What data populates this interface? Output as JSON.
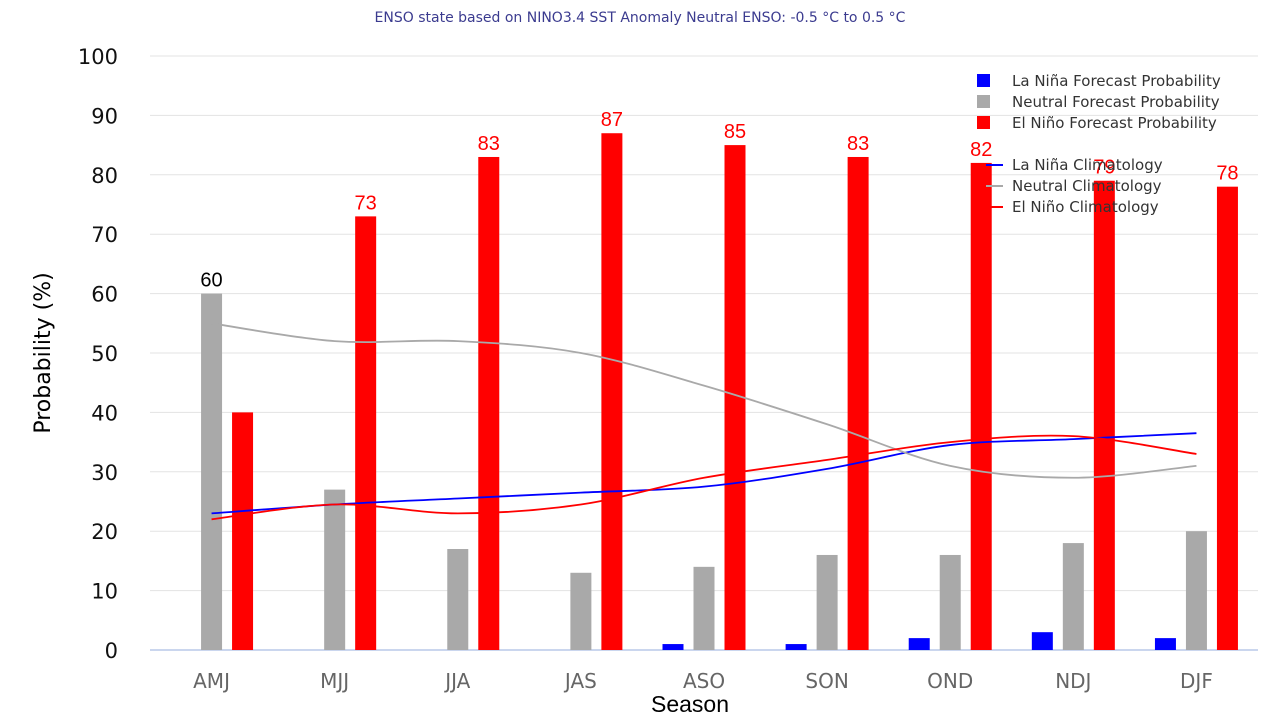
{
  "chart_data": {
    "type": "bar",
    "title": "ENSO state based on NINO3.4 SST Anomaly Neutral ENSO: -0.5 °C to 0.5 °C",
    "xlabel": "Season",
    "ylabel": "Probability (%)",
    "ylim": [
      0,
      100
    ],
    "yticks": [
      0,
      10,
      20,
      30,
      40,
      50,
      60,
      70,
      80,
      90,
      100
    ],
    "grid": true,
    "legend_position": "top-right",
    "categories": [
      "AMJ",
      "MJJ",
      "JJA",
      "JAS",
      "ASO",
      "SON",
      "OND",
      "NDJ",
      "DJF"
    ],
    "series": [
      {
        "name": "La Niña Forecast Probability",
        "kind": "bar",
        "color": "#0000ff",
        "values": [
          0,
          0,
          0,
          0,
          1,
          1,
          2,
          3,
          2
        ]
      },
      {
        "name": "Neutral Forecast Probability",
        "kind": "bar",
        "color": "#a9a9a9",
        "values": [
          60,
          27,
          17,
          13,
          14,
          16,
          16,
          18,
          20
        ]
      },
      {
        "name": "El Niño Forecast Probability",
        "kind": "bar",
        "color": "#ff0000",
        "values": [
          40,
          73,
          83,
          87,
          85,
          83,
          82,
          79,
          78
        ]
      },
      {
        "name": "La Niña Climatology",
        "kind": "line",
        "color": "#0000ff",
        "values": [
          23,
          24.5,
          25.5,
          26.5,
          27.5,
          30.5,
          34.5,
          35.5,
          36.5
        ]
      },
      {
        "name": "Neutral Climatology",
        "kind": "line",
        "color": "#a9a9a9",
        "values": [
          55,
          52,
          52,
          50,
          44.5,
          38,
          31,
          29,
          31
        ]
      },
      {
        "name": "El Niño Climatology",
        "kind": "line",
        "color": "#ff0000",
        "values": [
          22,
          24.5,
          23,
          24.5,
          29,
          32,
          35,
          36,
          33
        ]
      }
    ],
    "data_labels": [
      {
        "category": "AMJ",
        "series": "Neutral Forecast Probability",
        "text": "60",
        "color": "#000000"
      },
      {
        "category": "MJJ",
        "series": "El Niño Forecast Probability",
        "text": "73",
        "color": "#ff0000"
      },
      {
        "category": "JJA",
        "series": "El Niño Forecast Probability",
        "text": "83",
        "color": "#ff0000"
      },
      {
        "category": "JAS",
        "series": "El Niño Forecast Probability",
        "text": "87",
        "color": "#ff0000"
      },
      {
        "category": "ASO",
        "series": "El Niño Forecast Probability",
        "text": "85",
        "color": "#ff0000"
      },
      {
        "category": "SON",
        "series": "El Niño Forecast Probability",
        "text": "83",
        "color": "#ff0000"
      },
      {
        "category": "OND",
        "series": "El Niño Forecast Probability",
        "text": "82",
        "color": "#ff0000"
      },
      {
        "category": "NDJ",
        "series": "El Niño Forecast Probability",
        "text": "79",
        "color": "#ff0000"
      },
      {
        "category": "DJF",
        "series": "El Niño Forecast Probability",
        "text": "78",
        "color": "#ff0000"
      }
    ]
  }
}
